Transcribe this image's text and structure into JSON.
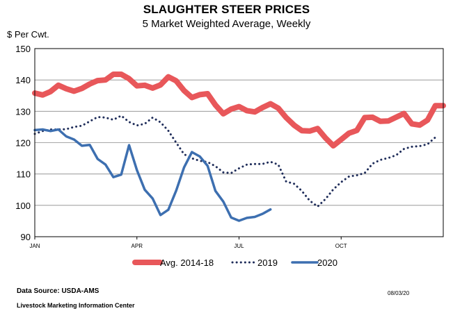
{
  "header": {
    "title": "SLAUGHTER STEER PRICES",
    "subtitle": "5 Market Weighted Average, Weekly"
  },
  "footer": {
    "source": "Data Source:  USDA-AMS",
    "center": "Livestock Marketing Information Center",
    "date": "08/03/20"
  },
  "chart_data": {
    "type": "line",
    "title": "SLAUGHTER STEER PRICES",
    "subtitle": "5 Market Weighted Average, Weekly",
    "ylabel": "$ Per Cwt.",
    "xlabel": "",
    "ylim": [
      90,
      150
    ],
    "yticks": [
      90,
      100,
      110,
      120,
      130,
      140,
      150
    ],
    "xlim": [
      1,
      53
    ],
    "xticks": [
      {
        "label": "JAN",
        "week": 1
      },
      {
        "label": "APR",
        "week": 14
      },
      {
        "label": "JUL",
        "week": 27
      },
      {
        "label": "OCT",
        "week": 40
      }
    ],
    "grid": true,
    "legend": "bottom",
    "series": [
      {
        "name": "Avg. 2014-18",
        "color": "#e8575a",
        "style": "solid-thick",
        "x": [
          1,
          2,
          3,
          4,
          5,
          6,
          7,
          8,
          9,
          10,
          11,
          12,
          13,
          14,
          15,
          16,
          17,
          18,
          19,
          20,
          21,
          22,
          23,
          24,
          25,
          26,
          27,
          28,
          29,
          30,
          31,
          32,
          33,
          34,
          35,
          36,
          37,
          38,
          39,
          40,
          41,
          42,
          43,
          44,
          45,
          46,
          47,
          48,
          49,
          50,
          51,
          52,
          53
        ],
        "values": [
          135.8,
          135.2,
          136.3,
          138.3,
          137.2,
          136.4,
          137.3,
          138.7,
          139.8,
          140.0,
          141.8,
          141.8,
          140.4,
          138.1,
          138.3,
          137.4,
          138.4,
          141.0,
          139.7,
          136.6,
          134.4,
          135.3,
          135.6,
          132.0,
          129.2,
          130.7,
          131.5,
          130.2,
          129.8,
          131.2,
          132.4,
          131.0,
          128.0,
          125.6,
          123.8,
          123.7,
          124.5,
          121.5,
          119.0,
          121.0,
          123.0,
          123.9,
          128.0,
          128.1,
          126.8,
          126.9,
          128.1,
          129.3,
          126.0,
          125.6,
          127.2,
          131.8,
          131.8
        ]
      },
      {
        "name": "2019",
        "color": "#1f2d5a",
        "style": "dotted",
        "x": [
          1,
          2,
          3,
          4,
          5,
          6,
          7,
          8,
          9,
          10,
          11,
          12,
          13,
          14,
          15,
          16,
          17,
          18,
          19,
          20,
          21,
          22,
          23,
          24,
          25,
          26,
          27,
          28,
          29,
          30,
          31,
          32,
          33,
          34,
          35,
          36,
          37,
          38,
          39,
          40,
          41,
          42,
          43,
          44,
          45,
          46,
          47,
          48,
          49,
          50,
          51,
          52
        ],
        "values": [
          122.8,
          123.7,
          124.2,
          124.2,
          124.3,
          125.0,
          125.4,
          126.8,
          128.2,
          128.0,
          127.3,
          128.6,
          126.6,
          125.5,
          126.0,
          128.0,
          126.5,
          123.8,
          120.0,
          116.3,
          115.0,
          114.2,
          113.8,
          112.5,
          110.5,
          110.3,
          111.8,
          113.0,
          113.2,
          113.2,
          113.9,
          113.0,
          107.6,
          106.9,
          104.6,
          101.5,
          99.6,
          102.0,
          105.1,
          107.4,
          109.2,
          109.6,
          110.3,
          113.3,
          114.5,
          115.1,
          116.0,
          118.0,
          118.7,
          118.9,
          119.5,
          121.7
        ]
      },
      {
        "name": "2020",
        "color": "#3d6fb0",
        "style": "solid",
        "x": [
          1,
          2,
          3,
          4,
          5,
          6,
          7,
          8,
          9,
          10,
          11,
          12,
          13,
          14,
          15,
          16,
          17,
          18,
          19,
          20,
          21,
          22,
          23,
          24,
          25,
          26,
          27,
          28,
          29,
          30,
          31
        ],
        "values": [
          124.0,
          124.2,
          123.7,
          124.2,
          122.0,
          121.0,
          119.0,
          119.3,
          114.8,
          113.0,
          109.0,
          109.8,
          119.2,
          111.2,
          105.0,
          102.2,
          96.9,
          98.6,
          104.7,
          112.1,
          117.0,
          115.6,
          112.6,
          104.6,
          101.2,
          96.1,
          95.1,
          96.0,
          96.3,
          97.3,
          98.7
        ]
      }
    ]
  }
}
